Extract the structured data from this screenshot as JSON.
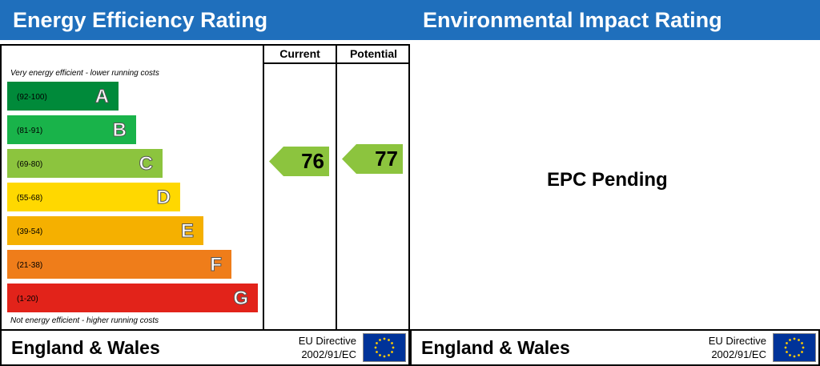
{
  "energy": {
    "title": "Energy Efficiency Rating",
    "columns": {
      "current": "Current",
      "potential": "Potential"
    },
    "top_note": "Very energy efficient - lower running costs",
    "bottom_note": "Not energy efficient - higher running costs",
    "footer": {
      "region": "England & Wales",
      "directive_line1": "EU Directive",
      "directive_line2": "2002/91/EC"
    }
  },
  "environment": {
    "title": "Environmental Impact Rating",
    "status": "EPC Pending",
    "footer": {
      "region": "England & Wales",
      "directive_line1": "EU Directive",
      "directive_line2": "2002/91/EC"
    }
  },
  "chart_data": {
    "type": "bar",
    "categories": [
      "A",
      "B",
      "C",
      "D",
      "E",
      "F",
      "G"
    ],
    "ranges": [
      "(92-100)",
      "(81-91)",
      "(69-80)",
      "(55-68)",
      "(39-54)",
      "(21-38)",
      "(1-20)"
    ],
    "colors": [
      "#008a3a",
      "#19b34a",
      "#8cc43e",
      "#ffd800",
      "#f5b000",
      "#ef7d1a",
      "#e2231a"
    ],
    "current": {
      "value": 76,
      "band": "C",
      "color": "#8cc43e"
    },
    "potential": {
      "value": 77,
      "band": "C",
      "color": "#8cc43e"
    }
  }
}
